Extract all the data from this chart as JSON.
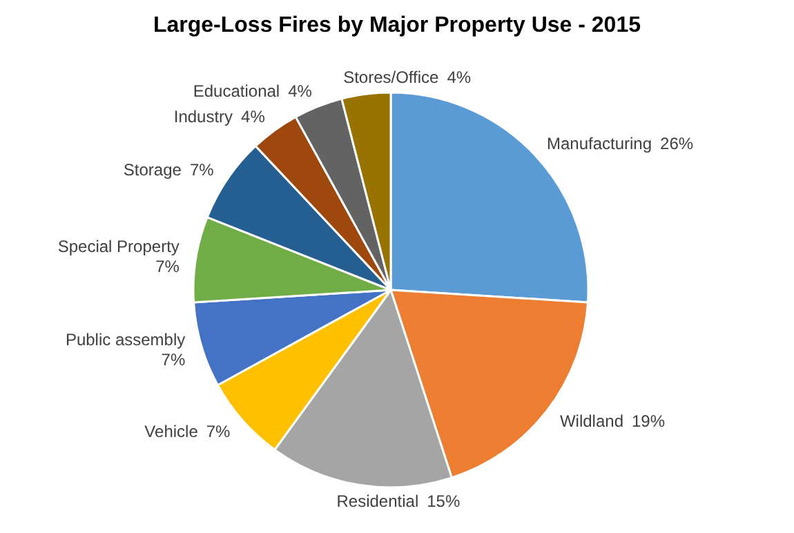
{
  "chart_data": {
    "type": "pie",
    "title": "Large-Loss Fires by Major Property Use - 2015",
    "categories": [
      "Manufacturing",
      "Wildland",
      "Residential",
      "Vehicle",
      "Public assembly",
      "Special Property",
      "Storage",
      "Industry",
      "Educational",
      "Stores/Office"
    ],
    "values": [
      26,
      19,
      15,
      7,
      7,
      7,
      7,
      4,
      4,
      4
    ],
    "value_labels": [
      "26%",
      "19%",
      "15%",
      "7%",
      "7%",
      "7%",
      "7%",
      "4%",
      "4%",
      "4%"
    ],
    "colors": [
      "#5b9bd5",
      "#ed7d31",
      "#a5a5a5",
      "#ffc000",
      "#4472c4",
      "#70ad47",
      "#255e91",
      "#9e480e",
      "#636363",
      "#997300"
    ],
    "legend": false
  }
}
